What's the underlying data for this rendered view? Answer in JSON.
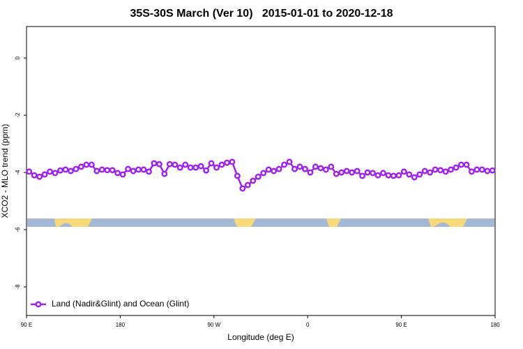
{
  "chart_data": {
    "type": "line",
    "title": "35S-30S March (Ver 10)   2015-01-01 to 2020-12-18",
    "xlabel": "Longitude (deg E)",
    "ylabel": "XCO2 - MLO trend (ppm)",
    "xlim": [
      90,
      540
    ],
    "ylim": [
      -9.0,
      1.1
    ],
    "xticks": [
      {
        "value": 90,
        "label": "90 E"
      },
      {
        "value": 180,
        "label": "180"
      },
      {
        "value": 270,
        "label": "90 W"
      },
      {
        "value": 360,
        "label": "0"
      },
      {
        "value": 450,
        "label": "90 E"
      },
      {
        "value": 540,
        "label": "180"
      }
    ],
    "yticks": [
      0,
      -2,
      -4,
      -6,
      -8
    ],
    "legend": "bottom-left",
    "series": [
      {
        "name": "Land (Nadir&Glint) and Ocean (Glint)",
        "color": "#a020f0",
        "x": [
          92.5,
          97.5,
          102.5,
          107.5,
          112.5,
          117.5,
          122.5,
          127.5,
          132.5,
          137.5,
          142.5,
          147.5,
          152.5,
          157.5,
          162.5,
          167.5,
          172.5,
          177.5,
          182.5,
          187.5,
          192.5,
          197.5,
          202.5,
          207.5,
          212.5,
          217.5,
          222.5,
          227.5,
          232.5,
          237.5,
          242.5,
          247.5,
          252.5,
          257.5,
          262.5,
          267.5,
          272.5,
          277.5,
          282.5,
          287.5,
          292.5,
          297.5,
          302.5,
          307.5,
          312.5,
          317.5,
          322.5,
          327.5,
          332.5,
          337.5,
          342.5,
          347.5,
          352.5,
          357.5,
          362.5,
          367.5,
          372.5,
          377.5,
          382.5,
          387.5,
          392.5,
          397.5,
          402.5,
          407.5,
          412.5,
          417.5,
          422.5,
          427.5,
          432.5,
          437.5,
          442.5,
          447.5,
          452.5,
          457.5,
          462.5,
          467.5,
          472.5,
          477.5,
          482.5,
          487.5,
          492.5,
          497.5,
          502.5,
          507.5,
          512.5,
          517.5,
          522.5,
          527.5,
          532.5,
          537.5
        ],
        "values": [
          -3.97,
          -4.1,
          -4.15,
          -4.07,
          -3.97,
          -4.02,
          -3.93,
          -3.9,
          -3.95,
          -3.88,
          -3.8,
          -3.73,
          -3.73,
          -3.95,
          -3.9,
          -3.92,
          -3.92,
          -4.02,
          -4.07,
          -3.88,
          -3.95,
          -3.9,
          -3.9,
          -3.97,
          -3.68,
          -3.71,
          -4.05,
          -3.71,
          -3.73,
          -3.83,
          -3.73,
          -3.83,
          -3.83,
          -3.78,
          -3.93,
          -3.68,
          -3.83,
          -3.73,
          -3.66,
          -3.63,
          -4.12,
          -4.56,
          -4.44,
          -4.29,
          -4.15,
          -4.02,
          -3.9,
          -3.95,
          -3.88,
          -3.73,
          -3.63,
          -3.88,
          -3.8,
          -3.88,
          -4.0,
          -3.8,
          -3.85,
          -3.9,
          -3.8,
          -4.05,
          -4.0,
          -3.95,
          -4.0,
          -3.95,
          -4.12,
          -4.0,
          -4.02,
          -4.1,
          -4.02,
          -4.1,
          -4.12,
          -4.1,
          -3.97,
          -4.07,
          -4.17,
          -4.07,
          -3.95,
          -4.0,
          -3.9,
          -3.92,
          -3.97,
          -3.9,
          -3.83,
          -3.73,
          -3.73,
          -3.97,
          -3.9,
          -3.9,
          -3.95,
          -3.93
        ]
      }
    ]
  }
}
